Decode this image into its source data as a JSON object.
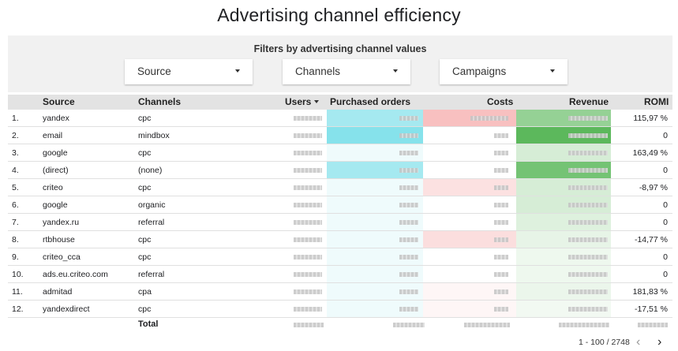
{
  "title": "Advertising channel efficiency",
  "filters": {
    "label": "Filters by advertising channel values",
    "controls": [
      {
        "label": "Source"
      },
      {
        "label": "Channels"
      },
      {
        "label": "Campaigns"
      }
    ]
  },
  "table": {
    "headers": {
      "source": "Source",
      "channels": "Channels",
      "users": "Users",
      "orders": "Purchased orders",
      "costs": "Costs",
      "revenue": "Revenue",
      "romi": "ROMI"
    },
    "rows": [
      {
        "num": "1.",
        "source": "yandex",
        "channel": "cpc",
        "romi": "115,97 %"
      },
      {
        "num": "2.",
        "source": "email",
        "channel": "mindbox",
        "romi": "0"
      },
      {
        "num": "3.",
        "source": "google",
        "channel": "cpc",
        "romi": "163,49 %"
      },
      {
        "num": "4.",
        "source": "(direct)",
        "channel": "(none)",
        "romi": "0"
      },
      {
        "num": "5.",
        "source": "criteo",
        "channel": "cpc",
        "romi": "-8,97 %"
      },
      {
        "num": "6.",
        "source": "google",
        "channel": "organic",
        "romi": "0"
      },
      {
        "num": "7.",
        "source": "yandex.ru",
        "channel": "referral",
        "romi": "0"
      },
      {
        "num": "8.",
        "source": "rtbhouse",
        "channel": "cpc",
        "romi": "-14,77 %"
      },
      {
        "num": "9.",
        "source": "criteo_cca",
        "channel": "cpc",
        "romi": "0"
      },
      {
        "num": "10.",
        "source": "ads.eu.criteo.com",
        "channel": "referral",
        "romi": "0"
      },
      {
        "num": "11.",
        "source": "admitad",
        "channel": "cpa",
        "romi": "181,83 %"
      },
      {
        "num": "12.",
        "source": "yandexdirect",
        "channel": "cpc",
        "romi": "-17,51 %"
      }
    ],
    "total_label": "Total"
  },
  "pagination": {
    "range": "1 - 100 / 2748",
    "prev": "‹",
    "next": "›"
  },
  "colors": {
    "orders": "#7fe0ea",
    "costs": "#f7b5b5",
    "revenue": "#5cb85c"
  }
}
